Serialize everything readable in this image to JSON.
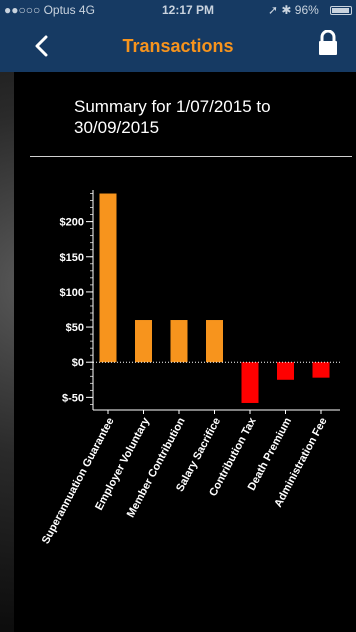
{
  "status_bar": {
    "carrier": "●●○○○ Optus  4G",
    "time": "12:17 PM",
    "battery_text": "➚ ✱ 96%"
  },
  "nav": {
    "title": "Transactions",
    "back_icon": "chevron-left-icon",
    "lock_icon": "lock-icon"
  },
  "summary": {
    "text": "Summary for 1/07/2015 to 30/09/2015"
  },
  "colors": {
    "positive": "#f7941d",
    "negative": "#ff0000",
    "nav_bg": "#163a63",
    "title": "#f7941d"
  },
  "chart_data": {
    "type": "bar",
    "categories": [
      "Superannuation Guarantee",
      "Employer Voluntary",
      "Member Contribution",
      "Salary Sacrifice",
      "Contribution Tax",
      "Death Premium",
      "Administration Fee"
    ],
    "values": [
      240,
      60,
      60,
      60,
      -58,
      -25,
      -22
    ],
    "yticks": [
      200,
      150,
      100,
      50,
      0,
      -50
    ],
    "ytick_labels": [
      "$200",
      "$150",
      "$100",
      "$50",
      "$0",
      "$-50"
    ],
    "ylim": [
      -68,
      245
    ],
    "zero_line": "dotted"
  }
}
